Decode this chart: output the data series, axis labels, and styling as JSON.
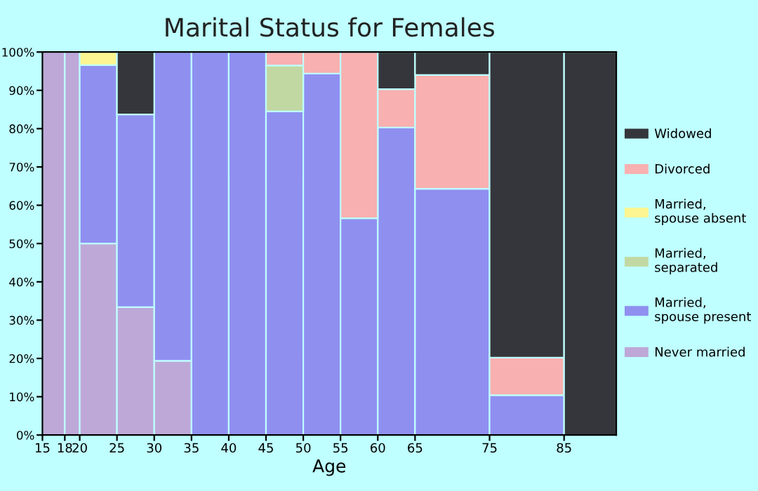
{
  "chart_data": {
    "type": "bar",
    "stacked": true,
    "title": "Marital Status for Females",
    "xlabel": "Age",
    "x": [
      16.5,
      19,
      22.5,
      27.5,
      32.5,
      37.5,
      42.5,
      47.5,
      52.5,
      57.5,
      62.5,
      70,
      80,
      88.5
    ],
    "series": [
      {
        "name": "Never married",
        "color": "#bea8d8",
        "values": [
          100,
          100,
          50,
          33.4,
          19.4,
          null,
          null,
          null,
          null,
          null,
          null,
          null,
          null,
          null
        ]
      },
      {
        "name": "Married,\nspouse present",
        "color": "#8f8ff0",
        "values": [
          null,
          null,
          46.6,
          50.3,
          80.6,
          100,
          100,
          84.5,
          94.4,
          56.6,
          80.3,
          64.3,
          10.4,
          null
        ]
      },
      {
        "name": "Married,\nseparated",
        "color": "#c2d8a3",
        "values": [
          null,
          null,
          null,
          null,
          null,
          null,
          null,
          12,
          null,
          null,
          null,
          null,
          null,
          null
        ]
      },
      {
        "name": "Married,\nspouse absent",
        "color": "#fdf591",
        "values": [
          null,
          null,
          3.4,
          null,
          null,
          null,
          null,
          null,
          null,
          null,
          null,
          null,
          null,
          null
        ]
      },
      {
        "name": "Divorced",
        "color": "#f8b0b0",
        "values": [
          null,
          null,
          null,
          null,
          null,
          null,
          null,
          3.5,
          5.6,
          43.4,
          10,
          29.7,
          9.8,
          null
        ]
      },
      {
        "name": "Widowed",
        "color": "#35363b",
        "values": [
          null,
          null,
          null,
          16.3,
          null,
          null,
          null,
          null,
          null,
          null,
          9.7,
          6,
          79.8,
          100
        ]
      }
    ],
    "xlim": [
      15,
      92
    ],
    "xticks": [
      15,
      18,
      20,
      25,
      30,
      35,
      40,
      45,
      50,
      55,
      60,
      65,
      75,
      85
    ],
    "ylim": [
      0,
      100
    ],
    "yticks": [
      {
        "value": 0,
        "label": "0%"
      },
      {
        "value": 10,
        "label": "10%"
      },
      {
        "value": 20,
        "label": "20%"
      },
      {
        "value": 30,
        "label": "30%"
      },
      {
        "value": 40,
        "label": "40%"
      },
      {
        "value": 50,
        "label": "50%"
      },
      {
        "value": 60,
        "label": "60%"
      },
      {
        "value": 70,
        "label": "70%"
      },
      {
        "value": 80,
        "label": "80%"
      },
      {
        "value": 90,
        "label": "90%"
      },
      {
        "value": 100,
        "label": "100%"
      }
    ],
    "grid": false,
    "legend": "right"
  }
}
